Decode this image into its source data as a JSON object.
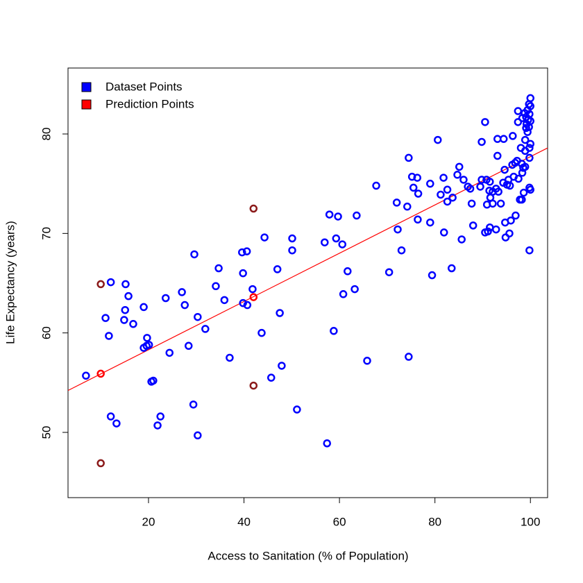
{
  "chart_data": {
    "type": "scatter",
    "x_label": "Access to Sanitation (% of Population)",
    "y_label": "Life Expectancy (years)",
    "xlim": [
      3.14,
      103.6
    ],
    "ylim": [
      43.44,
      86.63
    ],
    "xticks": [
      20,
      40,
      60,
      80,
      100
    ],
    "yticks": [
      50,
      60,
      70,
      80
    ],
    "legend_position": "top-left",
    "fit_line": {
      "intercept": 53.45,
      "slope": 0.2427,
      "color": "#ff0000"
    },
    "series": [
      {
        "name": "Dataset Points",
        "color": "#0000ff",
        "x": [
          6.9,
          12.1,
          11.0,
          11.7,
          12.1,
          13.3,
          15.2,
          15.1,
          14.9,
          15.8,
          16.8,
          19.0,
          19.0,
          19.6,
          20.1,
          19.7,
          20.6,
          21.0,
          21.9,
          22.5,
          23.6,
          24.4,
          27.0,
          27.6,
          28.4,
          29.4,
          29.6,
          30.3,
          30.3,
          31.9,
          34.1,
          34.7,
          35.9,
          37.0,
          39.6,
          39.8,
          39.8,
          40.6,
          40.7,
          41.8,
          43.7,
          44.3,
          45.7,
          47.0,
          47.5,
          47.9,
          50.1,
          50.1,
          51.1,
          56.9,
          57.4,
          57.9,
          58.8,
          59.3,
          59.7,
          60.6,
          60.8,
          61.7,
          63.2,
          63.6,
          65.8,
          67.7,
          70.4,
          72.0,
          72.2,
          73.0,
          74.2,
          74.5,
          74.5,
          75.2,
          75.5,
          76.3,
          76.4,
          76.5,
          79.0,
          79.0,
          79.4,
          80.6,
          81.2,
          81.8,
          81.9,
          82.6,
          82.6,
          83.5,
          83.7,
          84.7,
          85.1,
          85.6,
          86.0,
          86.9,
          87.4,
          87.7,
          88.0,
          89.5,
          89.8,
          89.8,
          90.5,
          90.5,
          90.8,
          90.9,
          91.1,
          91.4,
          91.5,
          91.5,
          91.6,
          92.1,
          92.1,
          92.8,
          92.8,
          93.1,
          93.1,
          93.3,
          93.8,
          94.3,
          94.4,
          94.6,
          94.7,
          94.8,
          95.1,
          95.4,
          95.6,
          95.7,
          95.9,
          96.2,
          96.3,
          96.5,
          96.8,
          96.9,
          97.2,
          97.4,
          97.4,
          97.5,
          97.8,
          98.0,
          98.2,
          98.2,
          98.3,
          98.3,
          98.5,
          98.6,
          98.8,
          98.9,
          98.9,
          98.9,
          99.1,
          99.1,
          99.2,
          99.4,
          99.4,
          99.5,
          99.7,
          99.7,
          99.8,
          99.8,
          99.8,
          99.8,
          99.8,
          100,
          100,
          100,
          100,
          100
        ],
        "y": [
          55.7,
          65.1,
          61.5,
          59.7,
          51.6,
          50.9,
          64.9,
          62.3,
          61.3,
          63.7,
          60.9,
          62.6,
          58.5,
          58.7,
          58.8,
          59.5,
          55.1,
          55.2,
          50.7,
          51.6,
          63.5,
          58.0,
          64.1,
          62.8,
          58.7,
          52.8,
          67.9,
          61.6,
          49.7,
          60.4,
          64.7,
          66.5,
          63.3,
          57.5,
          68.1,
          66.0,
          63.0,
          68.2,
          62.8,
          64.4,
          60.0,
          69.6,
          55.5,
          66.4,
          62.0,
          56.7,
          69.5,
          68.3,
          52.3,
          69.1,
          48.9,
          71.9,
          60.2,
          69.5,
          71.7,
          68.9,
          63.9,
          66.2,
          64.4,
          71.8,
          57.2,
          74.8,
          66.1,
          73.1,
          70.4,
          68.3,
          72.7,
          57.6,
          77.6,
          75.7,
          74.6,
          75.6,
          71.4,
          74.0,
          71.1,
          75.0,
          65.8,
          79.4,
          73.9,
          75.6,
          70.1,
          74.4,
          73.2,
          66.5,
          73.6,
          75.9,
          76.7,
          69.4,
          75.4,
          74.7,
          74.5,
          73.0,
          70.8,
          74.7,
          75.4,
          79.2,
          81.2,
          70.1,
          75.4,
          72.9,
          70.2,
          74.3,
          70.6,
          75.2,
          73.6,
          74.2,
          73.0,
          70.4,
          74.5,
          77.8,
          79.5,
          74.2,
          73.0,
          75.1,
          79.5,
          76.4,
          71.1,
          69.6,
          74.9,
          75.4,
          70.0,
          74.8,
          71.3,
          76.9,
          79.8,
          75.7,
          77.1,
          71.8,
          77.3,
          82.3,
          81.2,
          75.5,
          73.4,
          78.6,
          73.4,
          77.0,
          81.6,
          76.1,
          76.6,
          74.1,
          82.1,
          76.7,
          79.4,
          78.3,
          81.7,
          80.6,
          81.0,
          82.4,
          80.2,
          81.4,
          83.0,
          80.7,
          82.0,
          78.6,
          77.6,
          74.6,
          68.3,
          83.6,
          82.8,
          81.3,
          79.0,
          74.4
        ]
      },
      {
        "name": "Prediction Points",
        "color": "#ff0000",
        "x": [
          10,
          42
        ],
        "y": [
          55.9,
          63.6
        ]
      },
      {
        "color": "#8b1a1a",
        "x": [
          10,
          10,
          42,
          42
        ],
        "y": [
          64.9,
          46.9,
          72.5,
          54.7
        ]
      }
    ]
  }
}
